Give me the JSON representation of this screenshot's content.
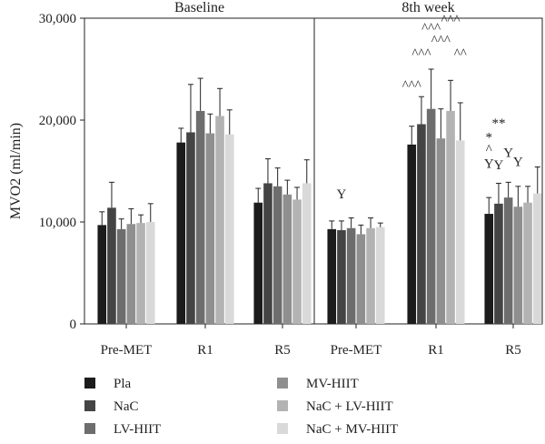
{
  "chart_data": {
    "type": "bar",
    "ylabel": "MVO2 (ml/min)",
    "xlabel": "",
    "ylim": [
      0,
      30000
    ],
    "yticks": [
      0,
      10000,
      20000,
      30000
    ],
    "ytick_labels": [
      "0",
      "10,000",
      "20,000",
      "30,000"
    ],
    "grid": false,
    "legend_position": "bottom",
    "panels": [
      {
        "title": "Baseline",
        "categories": [
          "Pre-MET",
          "R1",
          "R5"
        ],
        "series": [
          {
            "name": "Pla",
            "color": "#1c1c1c",
            "values": [
              9700,
              17800,
              11900
            ],
            "errors": [
              1300,
              1400,
              1400
            ]
          },
          {
            "name": "NaC",
            "color": "#444444",
            "values": [
              11400,
              18800,
              13800
            ],
            "errors": [
              2500,
              4700,
              2400
            ]
          },
          {
            "name": "LV-HIIT",
            "color": "#6d6d6d",
            "values": [
              9300,
              20900,
              13500
            ],
            "errors": [
              1000,
              3200,
              1800
            ]
          },
          {
            "name": "MV-HIIT",
            "color": "#8f8f8f",
            "values": [
              9800,
              18700,
              12700
            ],
            "errors": [
              1500,
              1900,
              1400
            ]
          },
          {
            "name": "NaC + LV-HIIT",
            "color": "#b3b3b3",
            "values": [
              9900,
              20400,
              12200
            ],
            "errors": [
              800,
              2700,
              1200
            ]
          },
          {
            "name": "NaC + MV-HIIT",
            "color": "#d9d9d9",
            "values": [
              10000,
              18600,
              13800
            ],
            "errors": [
              1800,
              2400,
              2300
            ]
          }
        ],
        "annotations": []
      },
      {
        "title": "8th week",
        "categories": [
          "Pre-MET",
          "R1",
          "R5"
        ],
        "series": [
          {
            "name": "Pla",
            "color": "#1c1c1c",
            "values": [
              9300,
              17600,
              10800
            ],
            "errors": [
              800,
              1800,
              1600
            ]
          },
          {
            "name": "NaC",
            "color": "#444444",
            "values": [
              9200,
              19600,
              11800
            ],
            "errors": [
              900,
              2700,
              2000
            ]
          },
          {
            "name": "LV-HIIT",
            "color": "#6d6d6d",
            "values": [
              9400,
              21100,
              12400
            ],
            "errors": [
              1000,
              3900,
              1500
            ]
          },
          {
            "name": "MV-HIIT",
            "color": "#8f8f8f",
            "values": [
              8800,
              18200,
              11500
            ],
            "errors": [
              900,
              2900,
              2000
            ]
          },
          {
            "name": "NaC + LV-HIIT",
            "color": "#b3b3b3",
            "values": [
              9400,
              20900,
              11900
            ],
            "errors": [
              1000,
              3000,
              1600
            ]
          },
          {
            "name": "NaC + MV-HIIT",
            "color": "#d9d9d9",
            "values": [
              9500,
              18000,
              12800
            ],
            "errors": [
              400,
              3700,
              2600
            ]
          }
        ],
        "annotations": [
          {
            "category": 0,
            "series": 1,
            "text": "Y",
            "y": 12300
          },
          {
            "category": 1,
            "series": 0,
            "text": "^^^",
            "y": 23000
          },
          {
            "category": 1,
            "series": 1,
            "text": "^^^",
            "y": 26100
          },
          {
            "category": 1,
            "series": 2,
            "text": "^^^",
            "y": 28600
          },
          {
            "category": 1,
            "series": 3,
            "text": "^^^",
            "y": 27400
          },
          {
            "category": 1,
            "series": 4,
            "text": "^^^",
            "y": 29400
          },
          {
            "category": 1,
            "series": 5,
            "text": "^^",
            "y": 26100
          },
          {
            "category": 2,
            "series": 0,
            "text": "*",
            "y": 17900
          },
          {
            "category": 2,
            "series": 0,
            "text": "^",
            "y": 16700
          },
          {
            "category": 2,
            "series": 0,
            "text": "Y",
            "y": 15300
          },
          {
            "category": 2,
            "series": 1,
            "text": "**",
            "y": 19300
          },
          {
            "category": 2,
            "series": 1,
            "text": "Y",
            "y": 15200
          },
          {
            "category": 2,
            "series": 2,
            "text": "Y",
            "y": 16400
          },
          {
            "category": 2,
            "series": 3,
            "text": "Y",
            "y": 15500
          }
        ]
      }
    ]
  }
}
